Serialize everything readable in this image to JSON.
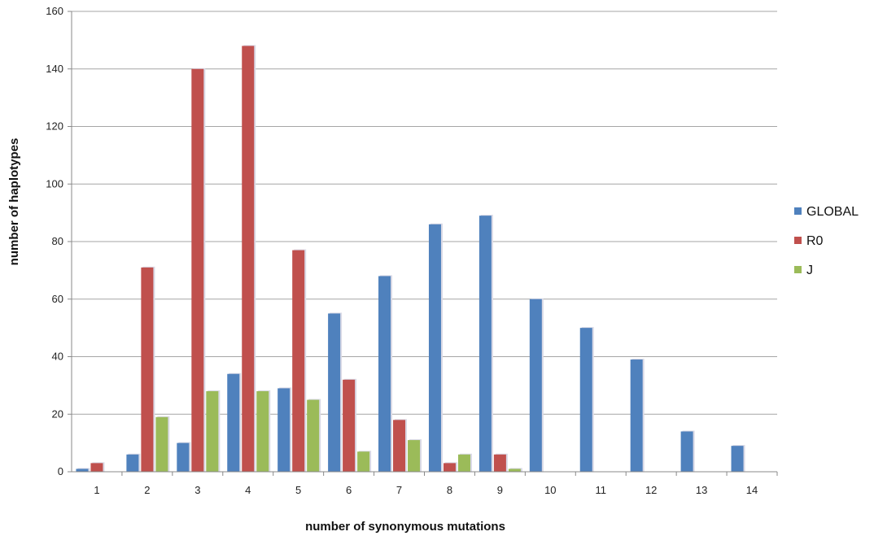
{
  "chart_data": {
    "type": "bar",
    "title": "",
    "xlabel": "number of synonymous mutations",
    "ylabel": "number of haplotypes",
    "categories": [
      "1",
      "2",
      "3",
      "4",
      "5",
      "6",
      "7",
      "8",
      "9",
      "10",
      "11",
      "12",
      "13",
      "14"
    ],
    "ylim": [
      0,
      160
    ],
    "yticks": [
      0,
      20,
      40,
      60,
      80,
      100,
      120,
      140,
      160
    ],
    "grid": true,
    "legend_position": "right",
    "series": [
      {
        "name": "GLOBAL",
        "color": "#4F81BD",
        "values": [
          1,
          6,
          10,
          34,
          29,
          55,
          68,
          86,
          89,
          60,
          50,
          39,
          14,
          9
        ]
      },
      {
        "name": "R0",
        "color": "#C0504D",
        "values": [
          3,
          71,
          140,
          148,
          77,
          32,
          18,
          3,
          6,
          0,
          0,
          0,
          0,
          0
        ]
      },
      {
        "name": "J",
        "color": "#9BBB59",
        "values": [
          0,
          19,
          28,
          28,
          25,
          7,
          11,
          6,
          1,
          0,
          0,
          0,
          0,
          0
        ]
      }
    ]
  }
}
